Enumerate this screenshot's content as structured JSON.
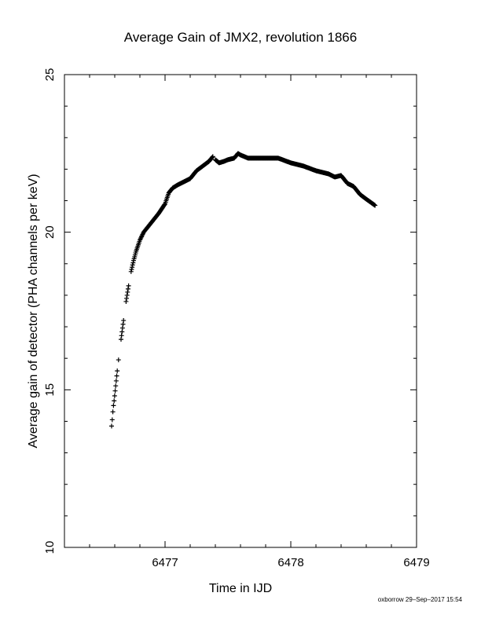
{
  "chart_data": {
    "type": "scatter",
    "title": "Average Gain of JMX2, revolution 1866",
    "xlabel": "Time in IJD",
    "ylabel": "Average gain of detector (PHA channels per keV)",
    "xlim": [
      6476.2,
      6479.0
    ],
    "ylim": [
      10,
      25
    ],
    "xticks": [
      6477,
      6478,
      6479
    ],
    "xtick_labels": [
      "6477",
      "6478",
      "6479"
    ],
    "yticks": [
      10,
      15,
      20,
      25
    ],
    "ytick_labels": [
      "10",
      "15",
      "20",
      "25"
    ],
    "marker": "plus",
    "grid": false,
    "legend": "none",
    "color": "#000000",
    "series": [
      {
        "x": [
          6476.575,
          6476.58,
          6476.585,
          6476.59,
          6476.595,
          6476.62,
          6476.63,
          6476.65,
          6476.67,
          6476.69,
          6476.71,
          6476.73,
          6476.75,
          6476.77,
          6476.8,
          6476.83,
          6476.86,
          6476.9,
          6476.95,
          6477.0,
          6477.03,
          6477.06,
          6477.1,
          6477.15,
          6477.2,
          6477.25,
          6477.3,
          6477.35,
          6477.38,
          6477.4,
          6477.43,
          6477.47,
          6477.5,
          6477.55,
          6477.58,
          6477.6,
          6477.63,
          6477.66,
          6477.7,
          6477.8,
          6477.9,
          6478.0,
          6478.1,
          6478.2,
          6478.3,
          6478.35,
          6478.4,
          6478.45,
          6478.5,
          6478.55,
          6478.6,
          6478.67
        ],
        "y": [
          13.85,
          14.05,
          14.3,
          14.5,
          14.65,
          15.6,
          15.95,
          16.6,
          17.2,
          17.8,
          18.3,
          18.75,
          19.1,
          19.4,
          19.75,
          20.0,
          20.15,
          20.35,
          20.6,
          20.9,
          21.25,
          21.4,
          21.5,
          21.6,
          21.7,
          21.95,
          22.1,
          22.25,
          22.4,
          22.3,
          22.2,
          22.25,
          22.3,
          22.35,
          22.5,
          22.45,
          22.4,
          22.35,
          22.35,
          22.35,
          22.35,
          22.2,
          22.1,
          21.95,
          21.85,
          21.75,
          21.8,
          21.55,
          21.45,
          21.2,
          21.05,
          20.85
        ]
      }
    ]
  },
  "footer": {
    "stamp": "oxborrow 29–Sep–2017 15:54"
  }
}
